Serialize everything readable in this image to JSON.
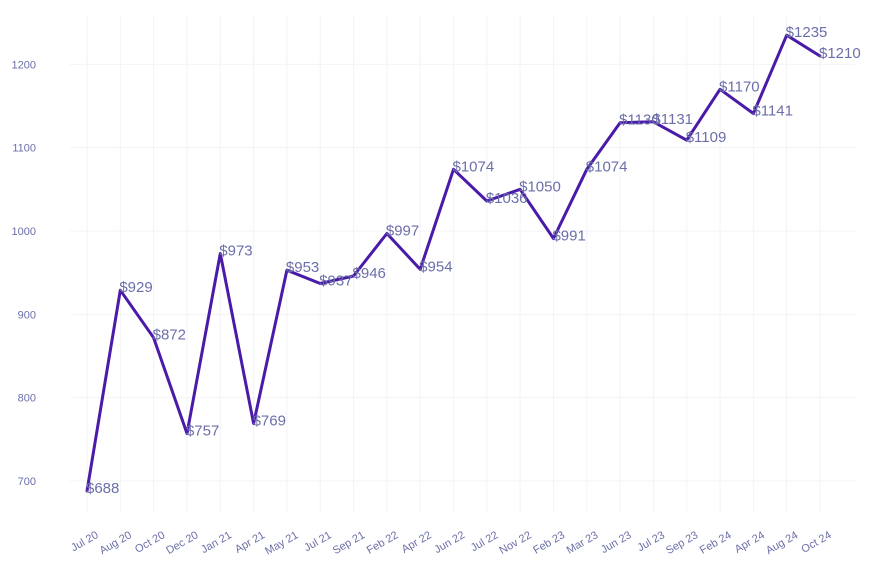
{
  "chart_data": {
    "type": "line",
    "title": "",
    "xlabel": "",
    "ylabel": "",
    "categories": [
      "Jul 20",
      "Aug 20",
      "Oct 20",
      "Dec 20",
      "Jan 21",
      "Apr 21",
      "May 21",
      "Jul 21",
      "Sep 21",
      "Feb 22",
      "Apr 22",
      "Jun 22",
      "Jul 22",
      "Nov 22",
      "Feb 23",
      "Mar 23",
      "Jun 23",
      "Jul 23",
      "Sep 23",
      "Feb 24",
      "Apr 24",
      "Aug 24",
      "Oct 24"
    ],
    "series": [
      {
        "values": [
          688,
          929,
          872,
          757,
          973,
          769,
          953,
          937,
          946,
          997,
          954,
          1074,
          1036,
          1050,
          991,
          1074,
          1130,
          1131,
          1109,
          1170,
          1141,
          1235,
          1210
        ],
        "labels": [
          "$688",
          "$929",
          "$872",
          "$757",
          "$973",
          "$769",
          "$953",
          "$937",
          "$946",
          "$997",
          "$954",
          "$1074",
          "$1036",
          "$1050",
          "$991",
          "$1074",
          "$1130",
          "$1131",
          "$1109",
          "$1170",
          "$1141",
          "$1235",
          "$1210"
        ],
        "color": "#4a1aa8"
      }
    ],
    "ylim": [
      650,
      1260
    ],
    "yticks": [
      700,
      800,
      900,
      1000,
      1100,
      1200
    ],
    "grid": true,
    "legend": "none"
  }
}
